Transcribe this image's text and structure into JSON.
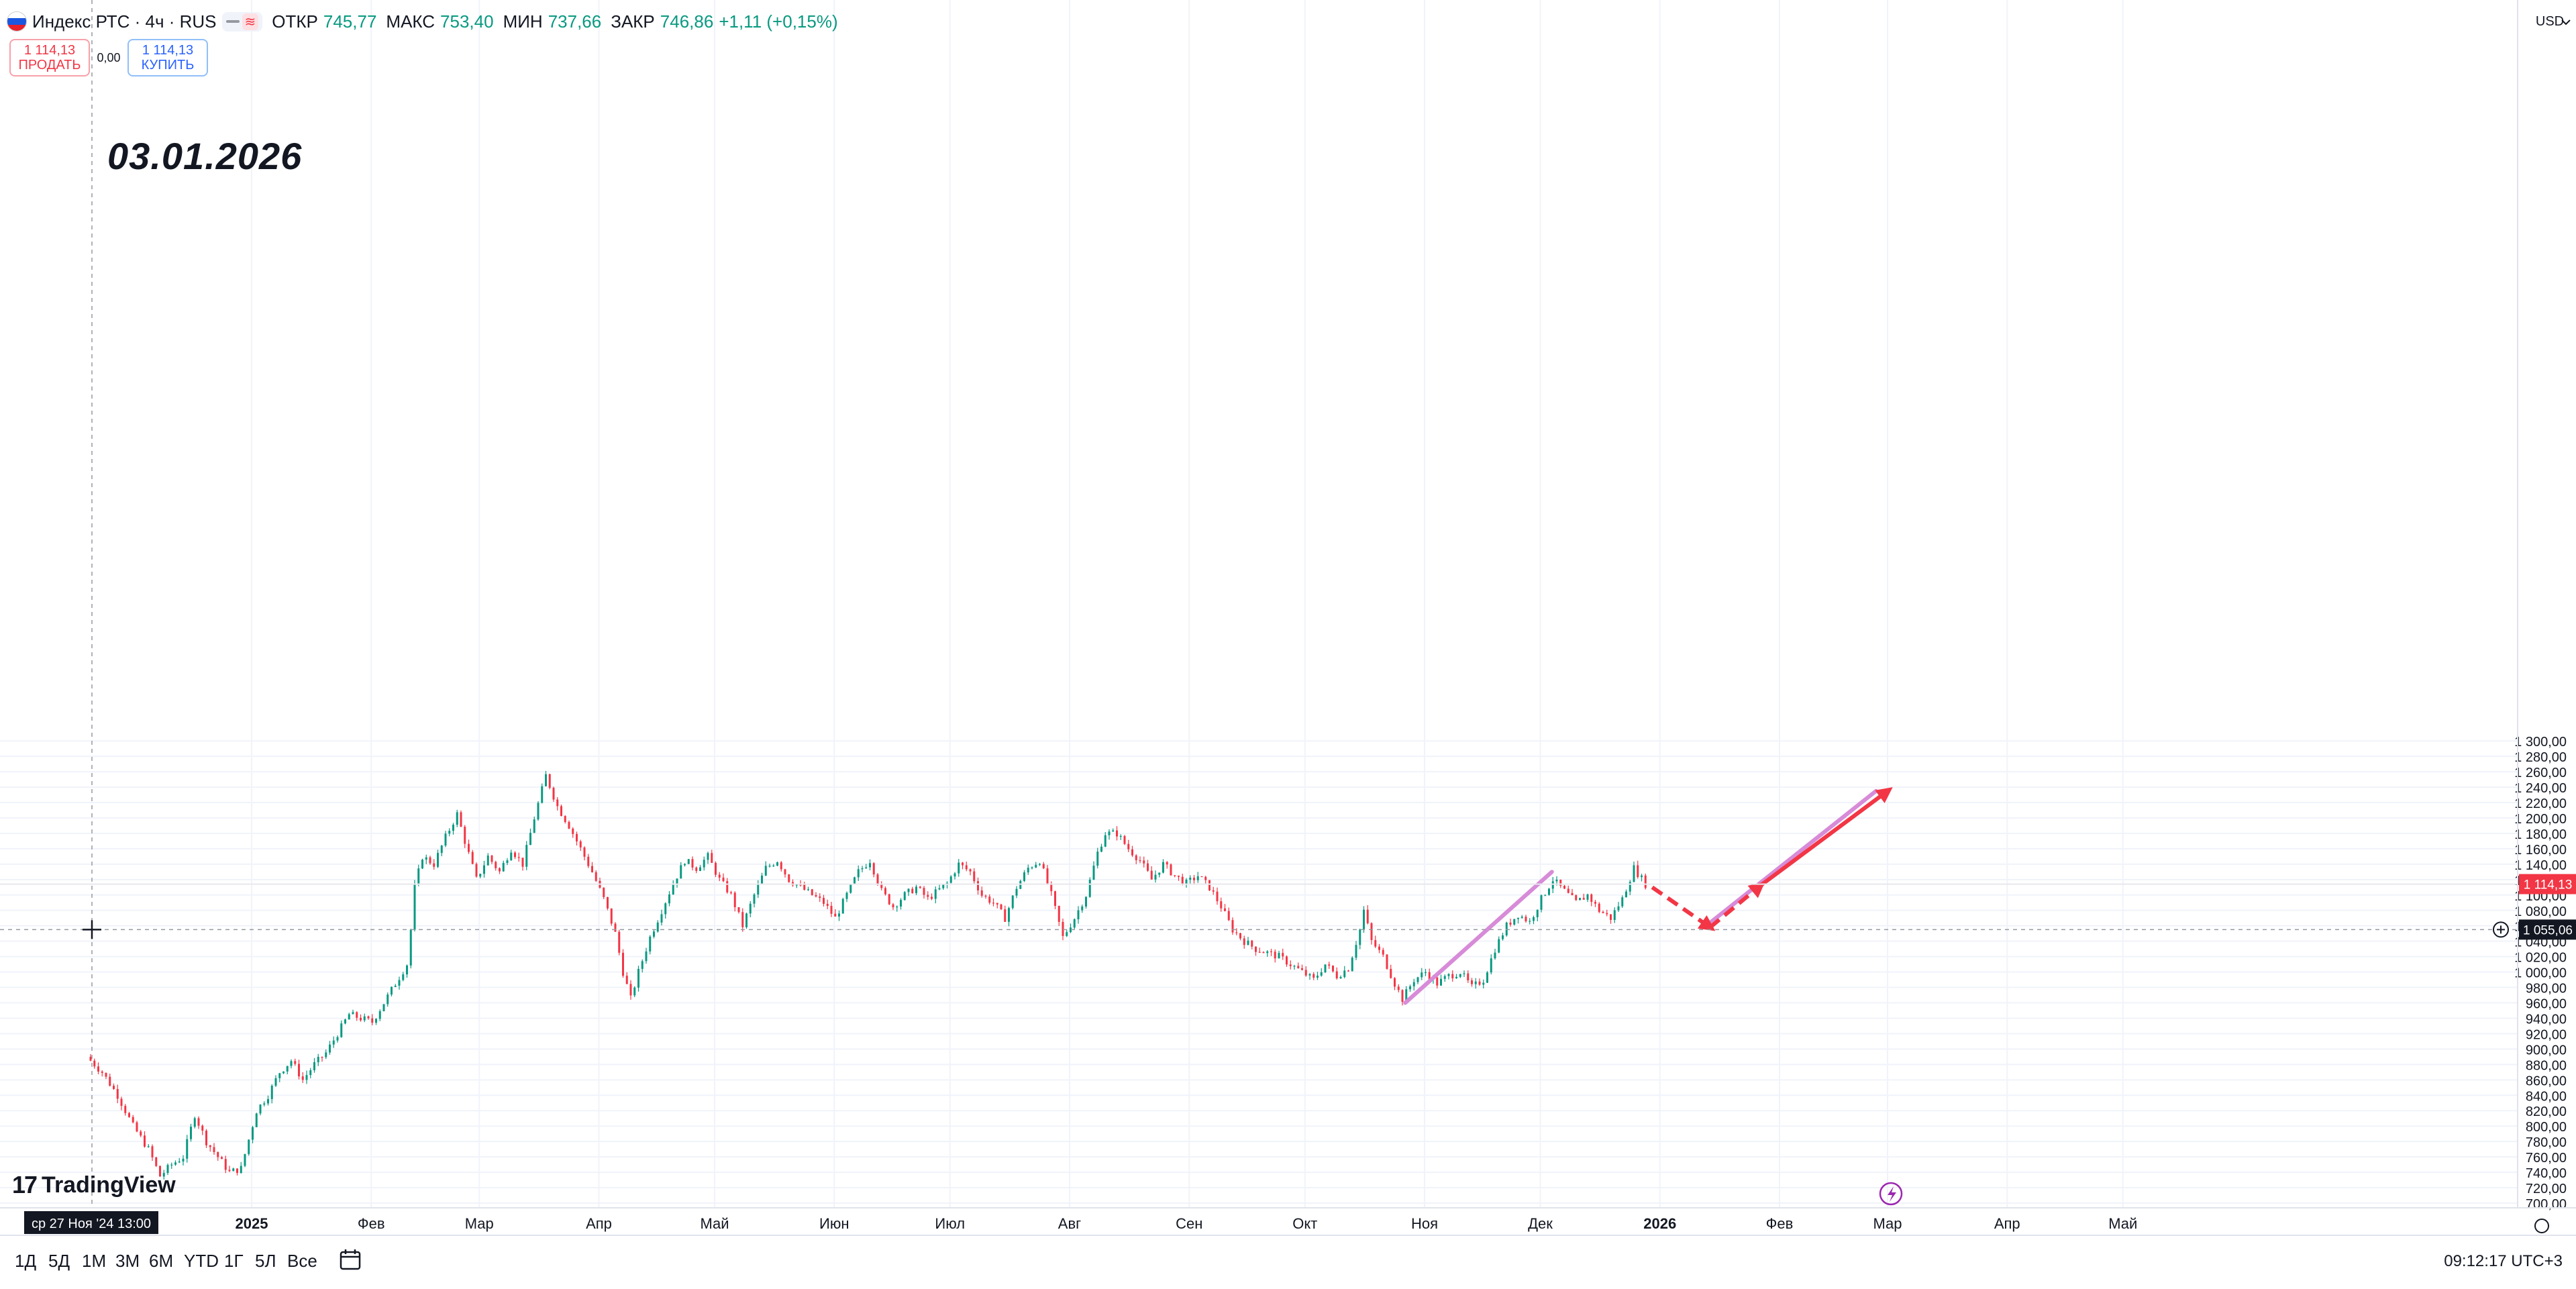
{
  "header": {
    "title": "Индекс РТС · 4ч · RUS",
    "open_label": "ОТКР",
    "open_value": "745,77",
    "high_label": "МАКС",
    "high_value": "753,40",
    "low_label": "МИН",
    "low_value": "737,66",
    "close_label": "ЗАКР",
    "close_value": "746,86",
    "change": "+1,11 (+0,15%)"
  },
  "trade": {
    "sell_price": "1 114,13",
    "sell_label": "ПРОДАТЬ",
    "spread": "0,00",
    "buy_price": "1 114,13",
    "buy_label": "КУПИТЬ"
  },
  "annotation": "03.01.2026",
  "logo_text": "TradingView",
  "crosshair_time": "ср 27 Ноя '24   13:00",
  "bottom_bar": {
    "ranges": [
      "1Д",
      "5Д",
      "1М",
      "3М",
      "6М",
      "YTD",
      "1Г",
      "5Л",
      "Все"
    ],
    "clock": "09:12:17 UTC+3"
  },
  "colors": {
    "up": "#089981",
    "down": "#f23645",
    "projection_pink": "#d78bd8",
    "projection_red": "#f23645"
  },
  "chart_data": {
    "type": "candlestick",
    "currency": "USD",
    "ylim": [
      700,
      1300
    ],
    "y_ticks": [
      "700,00",
      "720,00",
      "740,00",
      "760,00",
      "780,00",
      "800,00",
      "820,00",
      "840,00",
      "860,00",
      "880,00",
      "900,00",
      "920,00",
      "940,00",
      "960,00",
      "980,00",
      "1 000,00",
      "1 020,00",
      "1 040,00",
      "1 060,00",
      "1 080,00",
      "1 100,00",
      "1 120,00",
      "1 140,00",
      "1 160,00",
      "1 180,00",
      "1 200,00",
      "1 220,00",
      "1 240,00",
      "1 260,00",
      "1 280,00",
      "1 300,00"
    ],
    "x_ticks": [
      "2025",
      "Фев",
      "Мар",
      "Апр",
      "Май",
      "Июн",
      "Июл",
      "Авг",
      "Сен",
      "Окт",
      "Ноя",
      "Дек",
      "2026",
      "Фев",
      "Мар",
      "Апр",
      "Май"
    ],
    "last_price": "1 114,13",
    "crosshair_price": "1 055,06",
    "price_path": [
      [
        "2024-11-20",
        890
      ],
      [
        "2024-11-24",
        870
      ],
      [
        "2024-11-28",
        840
      ],
      [
        "2024-12-02",
        800
      ],
      [
        "2024-12-06",
        770
      ],
      [
        "2024-12-09",
        735
      ],
      [
        "2024-12-12",
        750
      ],
      [
        "2024-12-15",
        760
      ],
      [
        "2024-12-18",
        815
      ],
      [
        "2024-12-21",
        780
      ],
      [
        "2024-12-24",
        760
      ],
      [
        "2024-12-27",
        740
      ],
      [
        "2024-12-30",
        745
      ],
      [
        "2025-01-03",
        820
      ],
      [
        "2025-01-06",
        840
      ],
      [
        "2025-01-09",
        870
      ],
      [
        "2025-01-12",
        885
      ],
      [
        "2025-01-15",
        860
      ],
      [
        "2025-01-18",
        880
      ],
      [
        "2025-01-21",
        895
      ],
      [
        "2025-01-24",
        920
      ],
      [
        "2025-01-27",
        945
      ],
      [
        "2025-01-30",
        940
      ],
      [
        "2025-02-02",
        935
      ],
      [
        "2025-02-05",
        960
      ],
      [
        "2025-02-08",
        985
      ],
      [
        "2025-02-11",
        1010
      ],
      [
        "2025-02-12",
        1055
      ],
      [
        "2025-02-13",
        1110
      ],
      [
        "2025-02-15",
        1150
      ],
      [
        "2025-02-18",
        1140
      ],
      [
        "2025-02-21",
        1175
      ],
      [
        "2025-02-24",
        1205
      ],
      [
        "2025-02-26",
        1170
      ],
      [
        "2025-03-01",
        1120
      ],
      [
        "2025-03-04",
        1150
      ],
      [
        "2025-03-07",
        1130
      ],
      [
        "2025-03-10",
        1160
      ],
      [
        "2025-03-13",
        1140
      ],
      [
        "2025-03-16",
        1200
      ],
      [
        "2025-03-19",
        1255
      ],
      [
        "2025-03-22",
        1215
      ],
      [
        "2025-03-25",
        1190
      ],
      [
        "2025-03-28",
        1160
      ],
      [
        "2025-03-31",
        1130
      ],
      [
        "2025-04-03",
        1095
      ],
      [
        "2025-04-06",
        1050
      ],
      [
        "2025-04-08",
        1000
      ],
      [
        "2025-04-10",
        965
      ],
      [
        "2025-04-12",
        1000
      ],
      [
        "2025-04-15",
        1045
      ],
      [
        "2025-04-18",
        1080
      ],
      [
        "2025-04-21",
        1115
      ],
      [
        "2025-04-24",
        1145
      ],
      [
        "2025-04-27",
        1135
      ],
      [
        "2025-04-30",
        1150
      ],
      [
        "2025-05-03",
        1120
      ],
      [
        "2025-05-06",
        1100
      ],
      [
        "2025-05-09",
        1060
      ],
      [
        "2025-05-12",
        1100
      ],
      [
        "2025-05-15",
        1135
      ],
      [
        "2025-05-18",
        1145
      ],
      [
        "2025-05-21",
        1120
      ],
      [
        "2025-05-24",
        1110
      ],
      [
        "2025-05-27",
        1100
      ],
      [
        "2025-05-30",
        1090
      ],
      [
        "2025-06-02",
        1070
      ],
      [
        "2025-06-05",
        1100
      ],
      [
        "2025-06-08",
        1130
      ],
      [
        "2025-06-11",
        1145
      ],
      [
        "2025-06-14",
        1105
      ],
      [
        "2025-06-17",
        1085
      ],
      [
        "2025-06-20",
        1100
      ],
      [
        "2025-06-23",
        1110
      ],
      [
        "2025-06-26",
        1095
      ],
      [
        "2025-07-01",
        1115
      ],
      [
        "2025-07-04",
        1140
      ],
      [
        "2025-07-07",
        1130
      ],
      [
        "2025-07-10",
        1100
      ],
      [
        "2025-07-13",
        1090
      ],
      [
        "2025-07-16",
        1070
      ],
      [
        "2025-07-19",
        1110
      ],
      [
        "2025-07-22",
        1135
      ],
      [
        "2025-07-25",
        1145
      ],
      [
        "2025-07-28",
        1100
      ],
      [
        "2025-07-31",
        1045
      ],
      [
        "2025-08-03",
        1070
      ],
      [
        "2025-08-06",
        1100
      ],
      [
        "2025-08-09",
        1155
      ],
      [
        "2025-08-11",
        1180
      ],
      [
        "2025-08-14",
        1180
      ],
      [
        "2025-08-17",
        1160
      ],
      [
        "2025-08-20",
        1145
      ],
      [
        "2025-08-23",
        1120
      ],
      [
        "2025-08-26",
        1140
      ],
      [
        "2025-08-29",
        1125
      ],
      [
        "2025-09-01",
        1115
      ],
      [
        "2025-09-04",
        1125
      ],
      [
        "2025-09-07",
        1110
      ],
      [
        "2025-09-10",
        1085
      ],
      [
        "2025-09-13",
        1055
      ],
      [
        "2025-09-16",
        1040
      ],
      [
        "2025-09-19",
        1030
      ],
      [
        "2025-09-22",
        1025
      ],
      [
        "2025-09-25",
        1020
      ],
      [
        "2025-09-28",
        1010
      ],
      [
        "2025-10-01",
        1000
      ],
      [
        "2025-10-04",
        990
      ],
      [
        "2025-10-07",
        1010
      ],
      [
        "2025-10-10",
        995
      ],
      [
        "2025-10-13",
        1005
      ],
      [
        "2025-10-16",
        1055
      ],
      [
        "2025-10-17",
        1080
      ],
      [
        "2025-10-19",
        1040
      ],
      [
        "2025-10-22",
        1020
      ],
      [
        "2025-10-25",
        985
      ],
      [
        "2025-10-27",
        965
      ],
      [
        "2025-10-30",
        990
      ],
      [
        "2025-11-02",
        1000
      ],
      [
        "2025-11-05",
        985
      ],
      [
        "2025-11-08",
        995
      ],
      [
        "2025-11-11",
        1000
      ],
      [
        "2025-11-14",
        980
      ],
      [
        "2025-11-17",
        990
      ],
      [
        "2025-11-20",
        1030
      ],
      [
        "2025-11-23",
        1060
      ],
      [
        "2025-11-26",
        1075
      ],
      [
        "2025-11-29",
        1065
      ],
      [
        "2025-12-02",
        1095
      ],
      [
        "2025-12-05",
        1120
      ],
      [
        "2025-12-08",
        1105
      ],
      [
        "2025-12-11",
        1090
      ],
      [
        "2025-12-14",
        1100
      ],
      [
        "2025-12-17",
        1080
      ],
      [
        "2025-12-20",
        1070
      ],
      [
        "2025-12-23",
        1095
      ],
      [
        "2025-12-26",
        1135
      ],
      [
        "2025-12-29",
        1114
      ]
    ],
    "projection": {
      "pink_line_1": [
        [
          "2025-10-27",
          960
        ],
        [
          "2025-12-04",
          1130
        ]
      ],
      "pink_line_2": [
        [
          "2026-01-13",
          1060
        ],
        [
          "2026-02-26",
          1235
        ]
      ],
      "red_dashed_down": [
        [
          "2025-12-30",
          1110
        ],
        [
          "2026-01-14",
          1058
        ]
      ],
      "red_dashed_up": [
        [
          "2026-01-14",
          1058
        ],
        [
          "2026-01-27",
          1112
        ]
      ],
      "red_arrow": [
        [
          "2026-01-27",
          1112
        ],
        [
          "2026-02-29",
          1235
        ]
      ]
    }
  }
}
